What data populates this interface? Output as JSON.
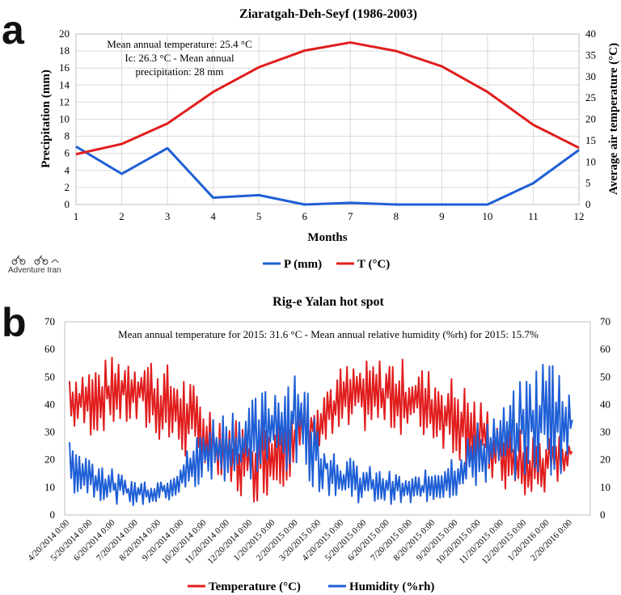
{
  "panel_labels": [
    "a",
    "b"
  ],
  "logo": {
    "text": "Adventure Iran"
  },
  "colors": {
    "temperature": "#e11d1d",
    "precipitation": "#1f5fd6",
    "grid": "#d9d9d9"
  },
  "chart_data": [
    {
      "type": "line",
      "title": "Ziaratgah-Deh-Seyf (1986-2003)",
      "annotation": [
        "Mean annual temperature: 25.4 °C",
        "Ic: 26.3 °C - Mean annual",
        "precipitation: 28 mm"
      ],
      "xlabel": "Months",
      "ylabel_left": "Precipitation (mm)",
      "ylabel_right": "Average air temperature (°C)",
      "x": [
        1,
        2,
        3,
        4,
        5,
        6,
        7,
        8,
        9,
        10,
        11,
        12
      ],
      "xlim": [
        1,
        12
      ],
      "ylim_left": [
        0,
        20
      ],
      "ylim_right": [
        0,
        40
      ],
      "yticks_left": [
        0,
        2,
        4,
        6,
        8,
        10,
        12,
        14,
        16,
        18,
        20
      ],
      "yticks_right": [
        0,
        5,
        10,
        15,
        20,
        25,
        30,
        35,
        40
      ],
      "grid": true,
      "legend_position": "bottom",
      "series": [
        {
          "name": "P (mm)",
          "axis": "left",
          "color": "#1f5fd6",
          "values": [
            6.8,
            3.6,
            6.6,
            0.8,
            1.1,
            0.0,
            0.2,
            0.0,
            0.0,
            0.0,
            2.5,
            6.4
          ]
        },
        {
          "name": "T (°C)",
          "axis": "right",
          "color": "#e11d1d",
          "values": [
            11.8,
            14.2,
            19.0,
            26.4,
            32.2,
            36.1,
            38.0,
            36.0,
            32.4,
            26.4,
            18.7,
            13.3
          ]
        }
      ]
    },
    {
      "type": "line",
      "title": "Rig-e Yalan hot spot",
      "annotation": "Mean annual temperature for 2015: 31.6 °C - Mean annual relative humidity (%rh) for 2015: 15.7%",
      "x_tick_labels": [
        "4/20/2014 0:00",
        "5/20/2014 0:00",
        "6/20/2014 0:00",
        "7/20/2014 0:00",
        "8/20/2014 0:00",
        "9/20/2014 0:00",
        "10/20/2014 0:00",
        "11/20/2014 0:00",
        "12/20/2014 0:00",
        "1/20/2015 0:00",
        "2/20/2015 0:00",
        "3/20/2015 0:00",
        "4/20/2015 0:00",
        "5/20/2015 0:00",
        "6/20/2015 0:00",
        "7/20/2015 0:00",
        "8/20/2015 0:00",
        "9/20/2015 0:00",
        "10/20/2015 0:00",
        "11/20/2015 0:00",
        "12/20/2015 0:00",
        "1/20/2016 0:00",
        "2/20/2016 0:00"
      ],
      "ylim_left": [
        0,
        70
      ],
      "ylim_right": [
        0,
        70
      ],
      "yticks": [
        0,
        10,
        20,
        30,
        40,
        50,
        60,
        70
      ],
      "grid": false,
      "legend_position": "bottom",
      "series": [
        {
          "name": "Temperature (°C)",
          "color": "#e11d1d",
          "monthly_min": [
            30,
            28,
            32,
            30,
            26,
            20,
            14,
            6,
            4,
            8,
            15,
            22,
            27,
            30,
            30,
            28,
            26,
            20,
            14,
            8,
            3,
            8,
            18
          ],
          "monthly_max": [
            54,
            55,
            58,
            61,
            56,
            52,
            42,
            36,
            34,
            40,
            45,
            48,
            55,
            56,
            58,
            56,
            52,
            50,
            42,
            34,
            30,
            30,
            28
          ]
        },
        {
          "name": "Humidity (%rh)",
          "color": "#1f5fd6",
          "monthly_min": [
            8,
            6,
            4,
            3,
            4,
            6,
            10,
            12,
            12,
            15,
            14,
            8,
            5,
            4,
            4,
            3,
            5,
            6,
            10,
            12,
            14,
            12,
            18
          ],
          "monthly_max": [
            28,
            22,
            16,
            13,
            14,
            22,
            36,
            40,
            42,
            50,
            59,
            30,
            22,
            18,
            16,
            14,
            18,
            24,
            36,
            40,
            52,
            61,
            51
          ]
        }
      ]
    }
  ]
}
